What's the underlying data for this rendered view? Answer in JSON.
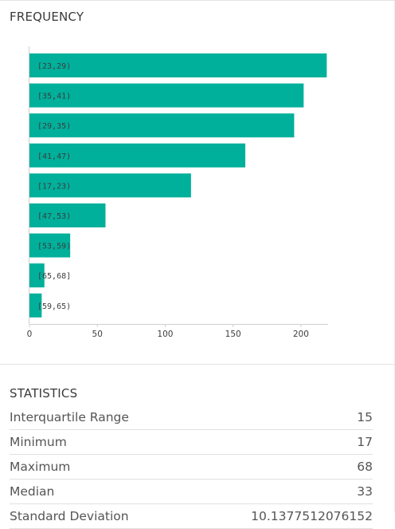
{
  "frequency_title": "FREQUENCY",
  "statistics_title": "STATISTICS",
  "colors": {
    "bar": "#00b09b",
    "axis": "#cfcfcf",
    "text": "#3d3d3d"
  },
  "chart_data": {
    "type": "bar",
    "orientation": "horizontal",
    "categories": [
      "[23,29)",
      "[35,41)",
      "[29,35)",
      "[41,47)",
      "[17,23)",
      "[47,53)",
      "[53,59)",
      "[65,68]",
      "[59,65)"
    ],
    "values": [
      219,
      202,
      195,
      159,
      119,
      56,
      30,
      11,
      9
    ],
    "xlim": [
      0,
      220
    ],
    "x_ticks": [
      0,
      50,
      100,
      150,
      200
    ],
    "title": "",
    "xlabel": "",
    "ylabel": "",
    "grid": false
  },
  "statistics": [
    {
      "label": "Interquartile Range",
      "value": "15"
    },
    {
      "label": "Minimum",
      "value": "17"
    },
    {
      "label": "Maximum",
      "value": "68"
    },
    {
      "label": "Median",
      "value": "33"
    },
    {
      "label": "Standard Deviation",
      "value": "10.1377512076152"
    }
  ]
}
